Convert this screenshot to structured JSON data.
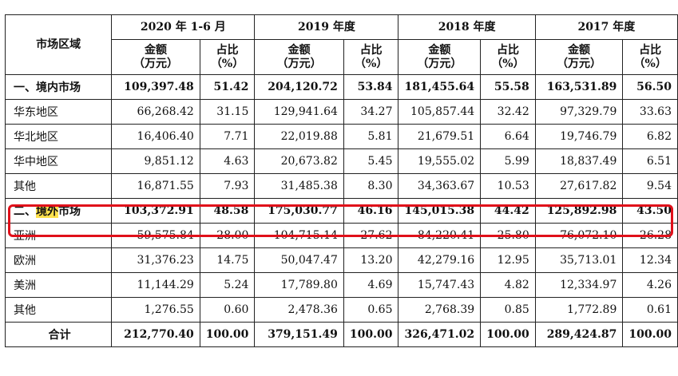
{
  "header": {
    "region_label": "市场区域",
    "periods": [
      "2020 年 1-6 月",
      "2019 年度",
      "2018 年度",
      "2017 年度"
    ],
    "amount_label": [
      "金额",
      "（万元）"
    ],
    "ratio_label": [
      "占比",
      "（%）"
    ]
  },
  "rows": [
    {
      "label": "一、境内市场",
      "bold": true,
      "values": [
        "109,397.48",
        "51.42",
        "204,120.72",
        "53.84",
        "181,455.64",
        "55.58",
        "163,531.89",
        "56.50"
      ]
    },
    {
      "label": "华东地区",
      "values": [
        "66,268.42",
        "31.15",
        "129,941.64",
        "34.27",
        "105,857.44",
        "32.42",
        "97,329.79",
        "33.63"
      ]
    },
    {
      "label": "华北地区",
      "values": [
        "16,406.40",
        "7.71",
        "22,019.88",
        "5.81",
        "21,679.51",
        "6.64",
        "19,746.79",
        "6.82"
      ]
    },
    {
      "label": "华中地区",
      "values": [
        "9,851.12",
        "4.63",
        "20,673.82",
        "5.45",
        "19,555.02",
        "5.99",
        "18,837.49",
        "6.51"
      ]
    },
    {
      "label": "其他",
      "values": [
        "16,871.55",
        "7.93",
        "31,485.38",
        "8.30",
        "34,363.67",
        "10.53",
        "27,617.82",
        "9.54"
      ]
    },
    {
      "label_parts": [
        "二、",
        "境外",
        "市场"
      ],
      "bold": true,
      "highlighted": true,
      "values": [
        "103,372.91",
        "48.58",
        "175,030.77",
        "46.16",
        "145,015.38",
        "44.42",
        "125,892.98",
        "43.50"
      ]
    },
    {
      "label": "亚洲",
      "values": [
        "59,575.84",
        "28.00",
        "104,715.14",
        "27.62",
        "84,220.41",
        "25.80",
        "76,072.10",
        "26.28"
      ]
    },
    {
      "label": "欧洲",
      "values": [
        "31,376.23",
        "14.75",
        "50,047.47",
        "13.20",
        "42,279.16",
        "12.95",
        "35,713.01",
        "12.34"
      ]
    },
    {
      "label": "美洲",
      "values": [
        "11,144.29",
        "5.24",
        "17,789.80",
        "4.69",
        "15,747.43",
        "4.82",
        "12,334.97",
        "4.26"
      ]
    },
    {
      "label": "其他",
      "values": [
        "1,276.55",
        "0.60",
        "2,478.36",
        "0.65",
        "2,768.39",
        "0.85",
        "1,772.89",
        "0.61"
      ]
    },
    {
      "label": "合计",
      "bold": true,
      "total": true,
      "values": [
        "212,770.40",
        "100.00",
        "379,151.49",
        "100.00",
        "326,471.02",
        "100.00",
        "289,424.87",
        "100.00"
      ]
    }
  ],
  "colors": {
    "highlight_box": "#e0101a",
    "text_highlight": "#ffe14d"
  }
}
